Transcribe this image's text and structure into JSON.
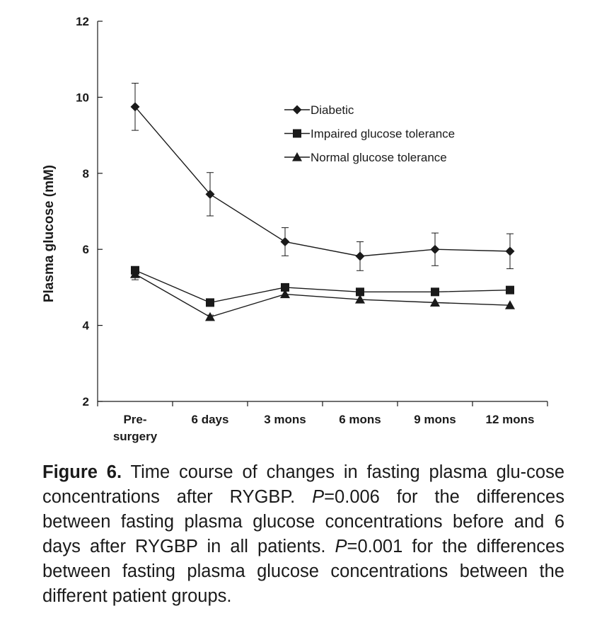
{
  "chart_data": {
    "type": "line",
    "ylabel": "Plasma glucose (mM)",
    "xlabel": "",
    "ylim": [
      2,
      12
    ],
    "yticks": [
      2,
      4,
      6,
      8,
      10,
      12
    ],
    "categories": [
      [
        "Pre-",
        "surgery"
      ],
      [
        "6 days"
      ],
      [
        "3 mons"
      ],
      [
        "6 mons"
      ],
      [
        "9 mons"
      ],
      [
        "12 mons"
      ]
    ],
    "legend_position": "top-right",
    "grid": false,
    "series": [
      {
        "name": "Diabetic",
        "marker": "diamond",
        "values": [
          9.75,
          7.45,
          6.2,
          5.82,
          6.0,
          5.95
        ],
        "errors": [
          0.62,
          0.57,
          0.37,
          0.38,
          0.43,
          0.46
        ]
      },
      {
        "name": "Impaired glucose tolerance",
        "marker": "square",
        "values": [
          5.45,
          4.6,
          5.0,
          4.88,
          4.88,
          4.93
        ],
        "errors": [
          0.0,
          0.0,
          0.0,
          0.0,
          0.0,
          0.0
        ]
      },
      {
        "name": "Normal glucose tolerance",
        "marker": "triangle",
        "values": [
          5.35,
          4.22,
          4.82,
          4.68,
          4.6,
          4.53
        ],
        "errors": [
          0.15,
          0.05,
          0.0,
          0.0,
          0.0,
          0.0
        ]
      }
    ]
  },
  "caption": {
    "label": "Figure 6.",
    "part1": " Time course of changes in fasting plasma glu-cose concentrations after RYGBP. ",
    "p1": "P",
    "part2": "=0.006 for the differences between fasting plasma glucose concentrations before and 6 days after RYGBP in all patients. ",
    "p2": "P",
    "part3": "=0.001 for the differences between fasting plasma glucose concentrations between the different patient groups."
  }
}
